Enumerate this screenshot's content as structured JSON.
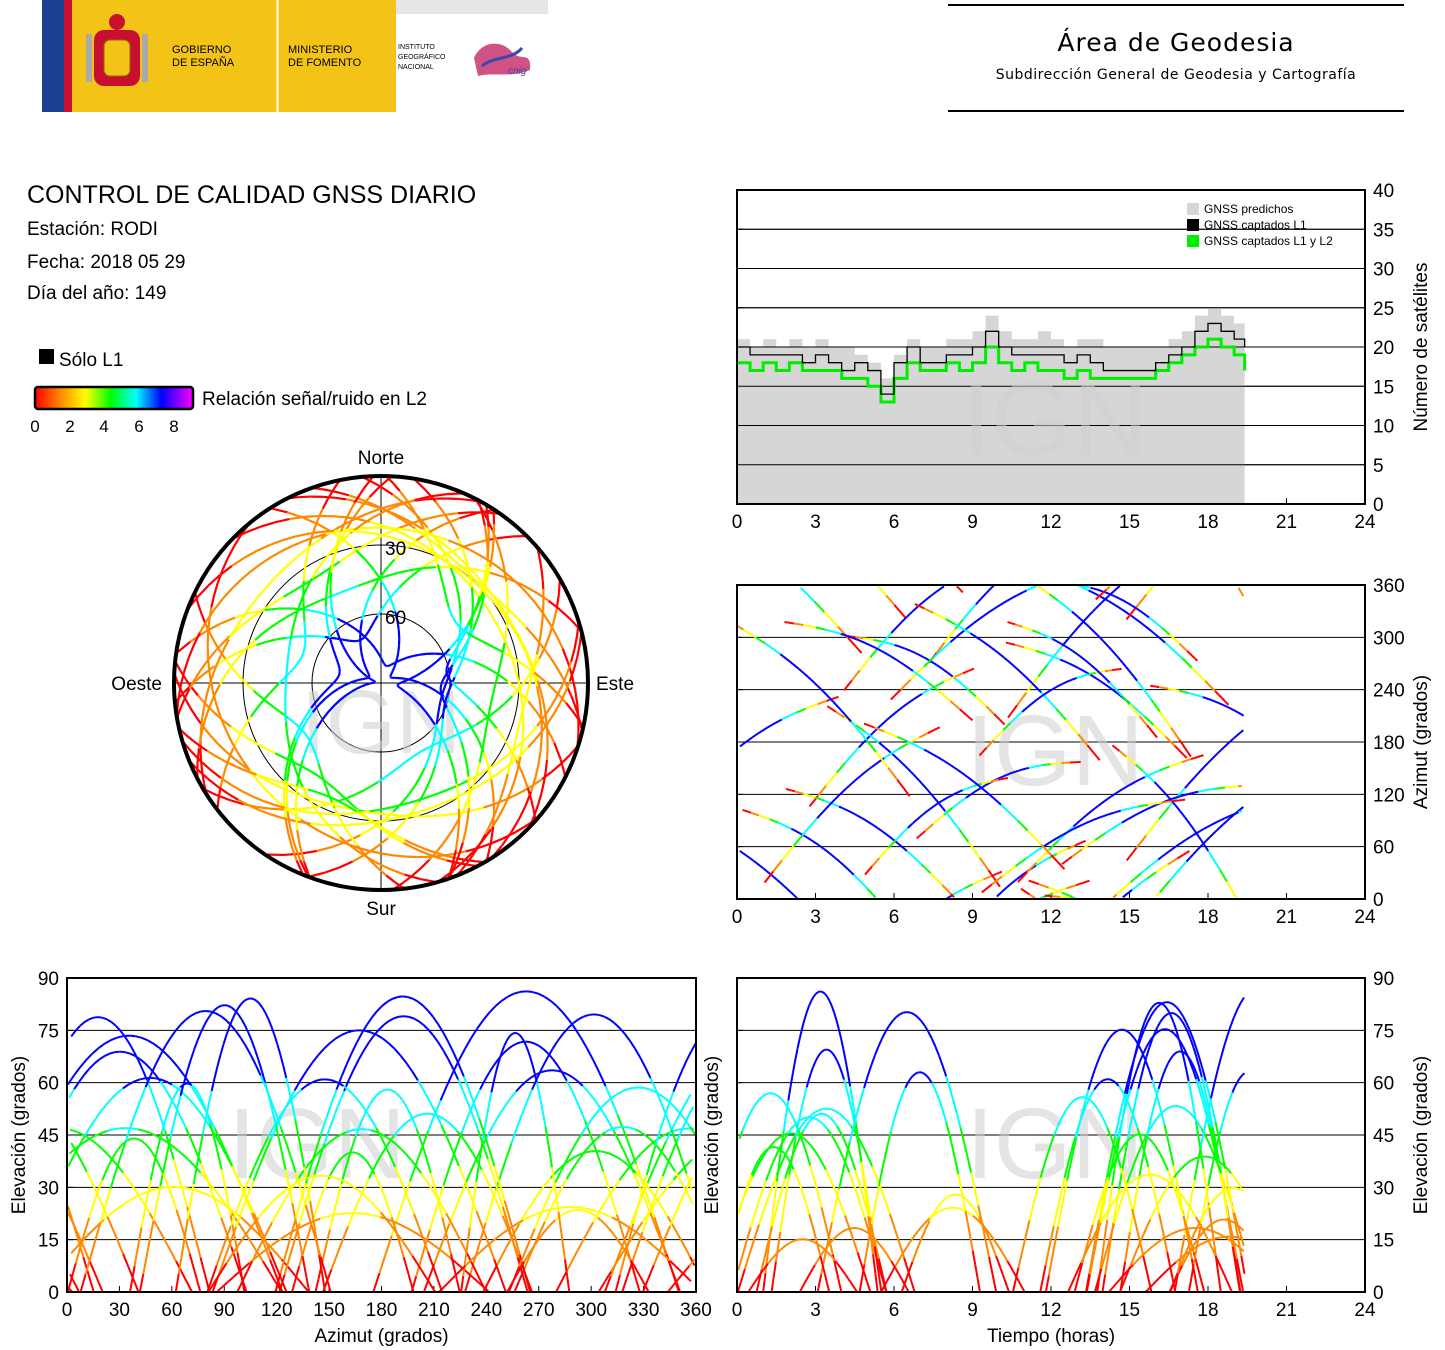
{
  "header": {
    "gobierno": [
      "GOBIERNO",
      "DE ESPAÑA"
    ],
    "ministerio": [
      "MINISTERIO",
      "DE FOMENTO"
    ],
    "instituto": [
      "INSTITUTO",
      "GEOGRÁFICO",
      "NACIONAL"
    ],
    "cnig": "cnig",
    "area_title": "Área de Geodesia",
    "area_subtitle": "Subdirección General de Geodesia y Cartografía"
  },
  "info": {
    "title": "CONTROL DE CALIDAD GNSS DIARIO",
    "station": "Estación: RODI",
    "date": "Fecha: 2018 05 29",
    "doy": "Día del año: 149"
  },
  "legend": {
    "only_l1": "Sólo L1",
    "snr_label": "Relación señal/ruido en L2",
    "snr_ticks": [
      "0",
      "2",
      "4",
      "6",
      "8"
    ]
  },
  "watermark": "IGN",
  "colors": {
    "predicted": "#d6d6d6",
    "captured_l1": "#000000",
    "captured_l1_l2": "#00ee00",
    "snr_scale": [
      "#ff0000",
      "#ff8800",
      "#ffff00",
      "#00ff00",
      "#00ffff",
      "#0000ff",
      "#ff00ff"
    ]
  },
  "chart_data": [
    {
      "id": "sat-count",
      "type": "area",
      "ylabel": "Número de satélites",
      "xlim": [
        0,
        24
      ],
      "ylim": [
        0,
        40
      ],
      "xticks": [
        0,
        3,
        6,
        9,
        12,
        15,
        18,
        21,
        24
      ],
      "yticks": [
        0,
        5,
        10,
        15,
        20,
        25,
        30,
        35,
        40
      ],
      "grid": "horizontal",
      "legend_position": "top-right",
      "legend": [
        "GNSS predichos",
        "GNSS captados L1",
        "GNSS captados L1 y L2"
      ],
      "x": [
        0,
        0.5,
        1,
        1.5,
        2,
        2.5,
        3,
        3.5,
        4,
        4.5,
        5,
        5.5,
        6,
        6.5,
        7,
        7.5,
        8,
        8.5,
        9,
        9.5,
        10,
        10.5,
        11,
        11.5,
        12,
        12.5,
        13,
        13.5,
        14,
        14.5,
        15,
        15.5,
        16,
        16.5,
        17,
        17.5,
        18,
        18.5,
        19,
        19.4
      ],
      "series": [
        {
          "name": "GNSS predichos",
          "values": [
            21,
            20,
            21,
            20,
            21,
            20,
            21,
            20,
            20,
            19,
            18,
            16,
            19,
            21,
            20,
            20,
            21,
            21,
            22,
            24,
            22,
            21,
            21,
            22,
            21,
            20,
            21,
            21,
            20,
            20,
            20,
            20,
            20,
            21,
            22,
            24,
            25,
            24,
            23,
            22
          ]
        },
        {
          "name": "GNSS captados L1",
          "values": [
            20,
            19,
            19,
            19,
            19,
            18,
            19,
            18,
            17,
            18,
            17,
            14,
            18,
            20,
            18,
            18,
            19,
            19,
            20,
            22,
            20,
            19,
            19,
            19,
            19,
            18,
            19,
            18,
            17,
            17,
            17,
            17,
            18,
            19,
            20,
            22,
            23,
            22,
            21,
            20
          ]
        },
        {
          "name": "GNSS captados L1 y L2",
          "values": [
            18,
            17,
            18,
            17,
            18,
            17,
            17,
            17,
            16,
            16,
            15,
            13,
            16,
            18,
            17,
            17,
            18,
            17,
            18,
            20,
            18,
            17,
            18,
            17,
            17,
            16,
            17,
            16,
            16,
            16,
            16,
            16,
            17,
            18,
            19,
            20,
            21,
            20,
            19,
            17
          ]
        }
      ]
    },
    {
      "id": "azimuth-time",
      "type": "scatter",
      "ylabel": "Azimut (grados)",
      "xlim": [
        0,
        24
      ],
      "ylim": [
        0,
        360
      ],
      "xticks": [
        0,
        3,
        6,
        9,
        12,
        15,
        18,
        21,
        24
      ],
      "yticks": [
        0,
        60,
        120,
        180,
        240,
        300,
        360
      ],
      "grid": "horizontal",
      "track_count": 32,
      "data_end_hours": 19.4
    },
    {
      "id": "skyplot",
      "type": "scatter",
      "projection": "polar",
      "directions": [
        "Norte",
        "Este",
        "Sur",
        "Oeste"
      ],
      "ring_labels": [
        "30",
        "60"
      ],
      "rings_elevation": [
        30,
        60
      ],
      "track_count": 32
    },
    {
      "id": "elev-azimuth",
      "type": "scatter",
      "xlabel": "Azimut (grados)",
      "ylabel": "Elevación (grados)",
      "xlim": [
        0,
        360
      ],
      "ylim": [
        0,
        90
      ],
      "xticks": [
        0,
        30,
        60,
        90,
        120,
        150,
        180,
        210,
        240,
        270,
        300,
        330,
        360
      ],
      "yticks": [
        0,
        15,
        30,
        45,
        60,
        75,
        90
      ],
      "grid": "horizontal",
      "track_count": 32
    },
    {
      "id": "elev-time",
      "type": "scatter",
      "xlabel": "Tiempo (horas)",
      "ylabel": "Elevación (grados)",
      "xlim": [
        0,
        24
      ],
      "ylim": [
        0,
        90
      ],
      "xticks": [
        0,
        3,
        6,
        9,
        12,
        15,
        18,
        21,
        24
      ],
      "yticks": [
        0,
        15,
        30,
        45,
        60,
        75,
        90
      ],
      "grid": "horizontal",
      "track_count": 32,
      "data_end_hours": 19.4
    }
  ]
}
